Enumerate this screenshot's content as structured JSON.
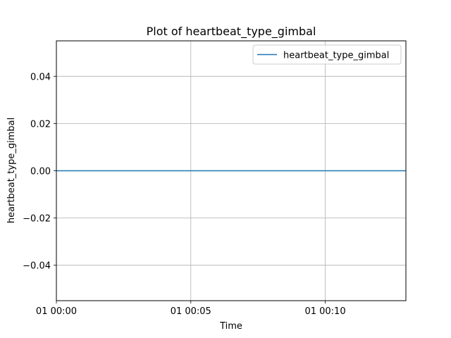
{
  "chart_data": {
    "type": "line",
    "title": "Plot of heartbeat_type_gimbal",
    "xlabel": "Time",
    "ylabel": "heartbeat_type_gimbal",
    "x_ticks": [
      "01 00:00",
      "01 00:05",
      "01 00:10"
    ],
    "y_ticks": [
      "0.04",
      "0.02",
      "0.00",
      "−0.02",
      "−0.04"
    ],
    "xlim": [
      "01 00:00",
      "01 00:13"
    ],
    "ylim": [
      -0.055,
      0.055
    ],
    "grid": true,
    "legend_position": "top-right",
    "series": [
      {
        "name": "heartbeat_type_gimbal",
        "color": "#1f77b4",
        "x": [
          "01 00:00",
          "01 00:13"
        ],
        "y": [
          0,
          0
        ]
      }
    ]
  }
}
